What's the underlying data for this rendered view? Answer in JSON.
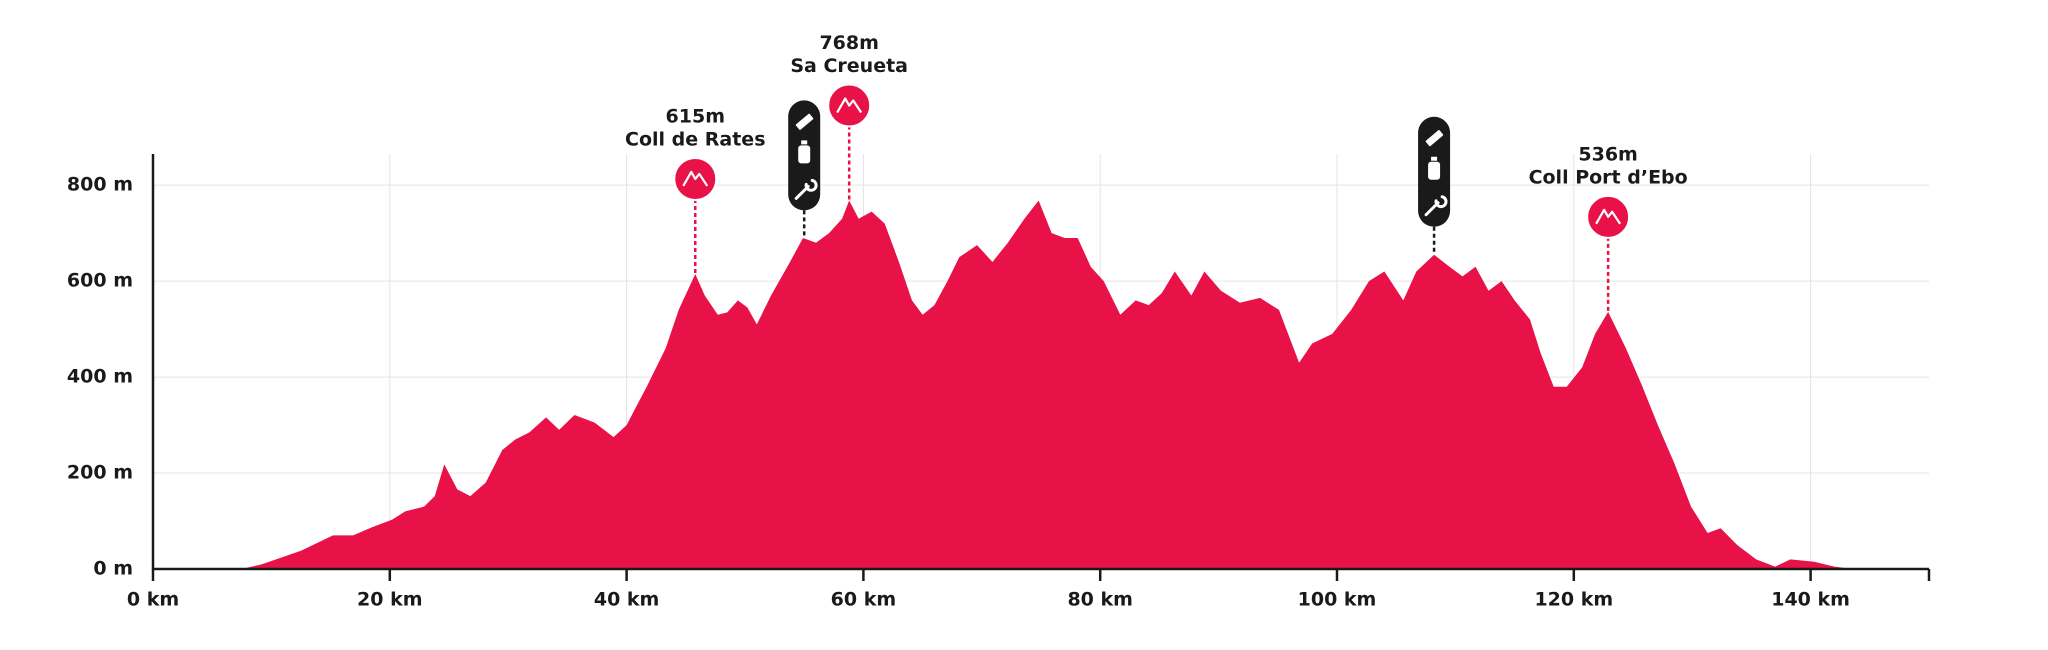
{
  "chart_data": {
    "type": "area",
    "color": "#e81248",
    "grid": true,
    "xlim": [
      0,
      150
    ],
    "ylim": [
      0,
      865
    ],
    "xticks": [
      {
        "value": 0,
        "label": "0 km"
      },
      {
        "value": 20,
        "label": "20 km"
      },
      {
        "value": 40,
        "label": "40 km"
      },
      {
        "value": 60,
        "label": "60 km"
      },
      {
        "value": 80,
        "label": "80 km"
      },
      {
        "value": 100,
        "label": "100 km"
      },
      {
        "value": 120,
        "label": "120 km"
      },
      {
        "value": 140,
        "label": "140 km"
      }
    ],
    "yticks": [
      {
        "value": 0,
        "label": "0 m"
      },
      {
        "value": 200,
        "label": "200 m"
      },
      {
        "value": 400,
        "label": "400 m"
      },
      {
        "value": 600,
        "label": "600 m"
      },
      {
        "value": 800,
        "label": "800 m"
      }
    ],
    "x": [
      7.5,
      9.2,
      12.5,
      15.2,
      16.9,
      18.5,
      20.2,
      21.3,
      22.9,
      23.8,
      24.6,
      25.7,
      26.8,
      28.1,
      29.5,
      30.6,
      31.8,
      33.2,
      34.3,
      35.6,
      37.3,
      38.9,
      40,
      41.7,
      43.3,
      44.4,
      45.8,
      46.6,
      47.7,
      48.5,
      49.4,
      50.2,
      51,
      52.2,
      53.8,
      54.9,
      56,
      57.1,
      58.2,
      58.8,
      59.6,
      60.7,
      61.8,
      63,
      64.1,
      65,
      66,
      67.1,
      68.1,
      69.6,
      70.9,
      72.2,
      73.6,
      74.8,
      75.9,
      77,
      78.1,
      79.2,
      80.3,
      81.7,
      83,
      84.1,
      85.2,
      86.3,
      87.7,
      88.8,
      90.2,
      91.8,
      93.5,
      95.1,
      96.8,
      97.9,
      99.6,
      101.2,
      102.7,
      104,
      105.6,
      106.7,
      108.2,
      109.5,
      110.6,
      111.7,
      112.8,
      113.9,
      115,
      116.3,
      117.2,
      118.3,
      119.4,
      120.7,
      121.8,
      122.9,
      124.4,
      125.8,
      127.1,
      128.5,
      129.9,
      131.3,
      132.4,
      133.8,
      135.4,
      137,
      138.3,
      140.3,
      142,
      143.6
    ],
    "values": [
      0,
      10,
      38,
      70,
      70,
      87,
      103,
      120,
      130,
      152,
      218,
      166,
      152,
      180,
      248,
      270,
      285,
      316,
      290,
      321,
      305,
      275,
      300,
      380,
      460,
      540,
      615,
      570,
      530,
      535,
      560,
      545,
      510,
      570,
      640,
      690,
      680,
      700,
      730,
      768,
      730,
      745,
      720,
      640,
      560,
      530,
      550,
      600,
      650,
      675,
      640,
      680,
      730,
      768,
      700,
      690,
      690,
      630,
      600,
      530,
      560,
      550,
      575,
      620,
      570,
      620,
      580,
      555,
      565,
      540,
      430,
      470,
      490,
      540,
      600,
      620,
      560,
      620,
      655,
      630,
      610,
      630,
      580,
      600,
      560,
      520,
      450,
      380,
      380,
      420,
      490,
      536,
      460,
      380,
      300,
      220,
      130,
      75,
      85,
      50,
      20,
      5,
      20,
      15,
      5,
      0
    ],
    "peaks": [
      {
        "x": 45.8,
        "value": 615,
        "value_label": "615m",
        "name": "Coll de Rates"
      },
      {
        "x": 58.8,
        "value": 768,
        "value_label": "768m",
        "name": "Sa Creueta"
      },
      {
        "x": 122.9,
        "value": 536,
        "value_label": "536m",
        "name": "Coll Port d’Ebo"
      }
    ],
    "aid_stations": [
      55,
      108.2
    ]
  }
}
